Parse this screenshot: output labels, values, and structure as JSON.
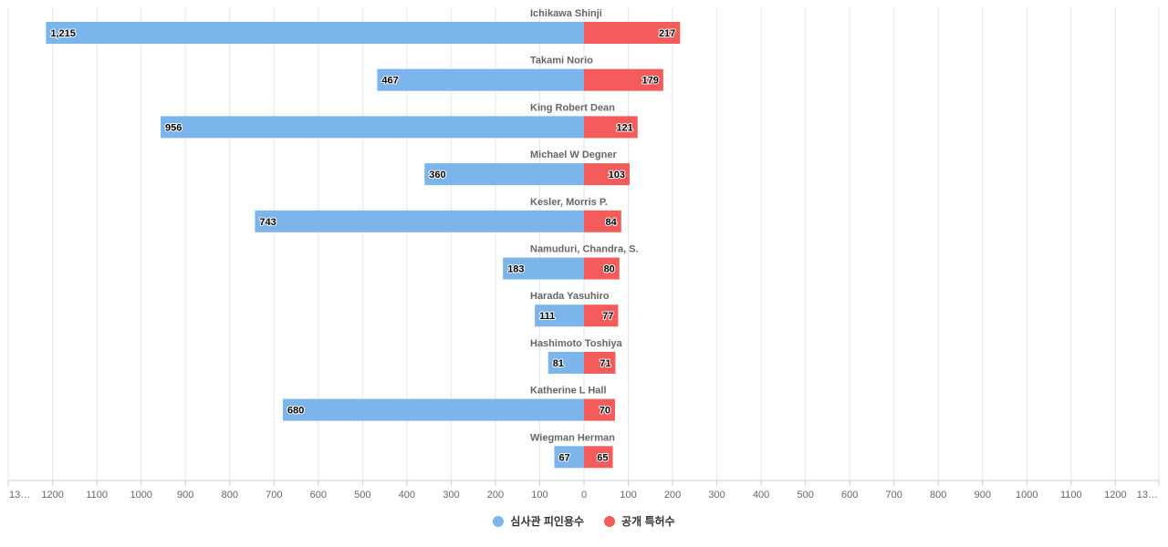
{
  "chart_data": {
    "type": "bar",
    "orientation": "horizontal-diverging",
    "categories": [
      "Ichikawa Shinji",
      "Takami Norio",
      "King Robert Dean",
      "Michael W Degner",
      "Kesler, Morris P.",
      "Namuduri, Chandra, S.",
      "Harada Yasuhiro",
      "Hashimoto Toshiya",
      "Katherine L Hall",
      "Wiegman Herman"
    ],
    "series": [
      {
        "name": "심사관 피인용수",
        "color": "#7cb5ec",
        "side": "left",
        "values": [
          1215,
          467,
          956,
          360,
          743,
          183,
          111,
          81,
          680,
          67
        ],
        "labels": [
          "1,215",
          "467",
          "956",
          "360",
          "743",
          "183",
          "111",
          "81",
          "680",
          "67"
        ]
      },
      {
        "name": "공개 특허수",
        "color": "#f45b5b",
        "side": "right",
        "values": [
          217,
          179,
          121,
          103,
          84,
          80,
          77,
          71,
          70,
          65
        ],
        "labels": [
          "217",
          "179",
          "121",
          "103",
          "84",
          "80",
          "77",
          "71",
          "70",
          "65"
        ]
      }
    ],
    "x_ticks": [
      "13…",
      "1200",
      "1100",
      "1000",
      "900",
      "800",
      "700",
      "600",
      "500",
      "400",
      "300",
      "200",
      "100",
      "0",
      "100",
      "200",
      "300",
      "400",
      "500",
      "600",
      "700",
      "800",
      "900",
      "1000",
      "1100",
      "1200",
      "13…"
    ],
    "xlim": [
      -1300,
      1300
    ],
    "grid": true,
    "legend_position": "bottom-center"
  }
}
